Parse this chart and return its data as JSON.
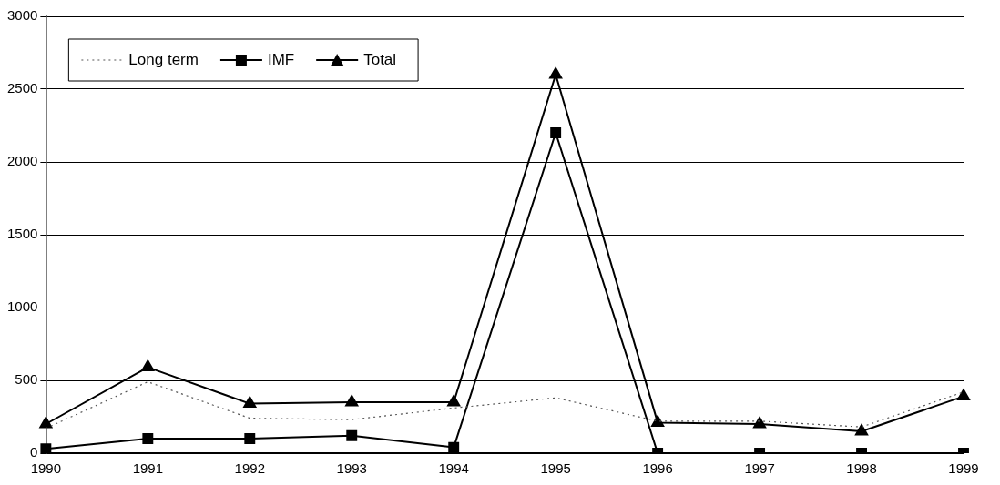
{
  "chart_data": {
    "type": "line",
    "categories": [
      "1990",
      "1991",
      "1992",
      "1993",
      "1994",
      "1995",
      "1996",
      "1997",
      "1998",
      "1999"
    ],
    "series": [
      {
        "name": "Long term",
        "color": "#555555",
        "line_style": "dotted",
        "marker": "none",
        "values": [
          170,
          490,
          240,
          230,
          310,
          380,
          220,
          220,
          180,
          420
        ]
      },
      {
        "name": "IMF",
        "color": "#000000",
        "marker": "square",
        "values": [
          30,
          100,
          100,
          120,
          40,
          2200,
          0,
          0,
          0,
          0
        ]
      },
      {
        "name": "Total",
        "color": "#000000",
        "marker": "triangle",
        "values": [
          200,
          590,
          340,
          350,
          350,
          2600,
          210,
          200,
          150,
          390
        ]
      }
    ],
    "ylim": [
      0,
      3000
    ],
    "yticks": [
      0,
      500,
      1000,
      1500,
      2000,
      2500,
      3000
    ],
    "grid": "y",
    "legend": "top left"
  }
}
